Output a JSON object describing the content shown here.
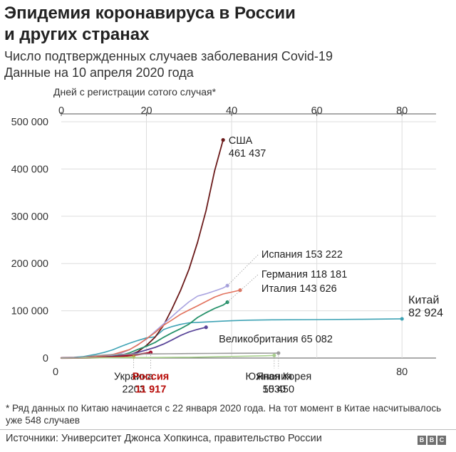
{
  "title_lines": [
    "Эпидемия коронавируса в России",
    "и других странах"
  ],
  "subtitle_lines": [
    "Число подтвержденных случаев заболевания Covid-19",
    "Данные на 10 апреля 2020 года"
  ],
  "footnote": "* Ряд данных по Китаю начинается с 22 января 2020 года. На тот момент в Китае насчитывалось уже 548 случаев",
  "source": "Источники: Университет Джонса Хопкинса, правительство России",
  "logo_letters": [
    "B",
    "B",
    "C"
  ],
  "chart_data": {
    "type": "line",
    "xlabel": "Дней с регистрации сотого случая*",
    "xlim": [
      0,
      88
    ],
    "ylim": [
      0,
      500000
    ],
    "x_ticks_top": [
      "0",
      "20",
      "40",
      "60",
      "80"
    ],
    "x_ticks_bottom": [
      "0",
      "80"
    ],
    "x_tick_values": [
      0,
      20,
      40,
      60,
      80
    ],
    "y_ticks": [
      {
        "value": 0,
        "label": "0"
      },
      {
        "value": 100000,
        "label": "100 000"
      },
      {
        "value": 200000,
        "label": "200 000"
      },
      {
        "value": 300000,
        "label": "300 000"
      },
      {
        "value": 400000,
        "label": "400 000"
      },
      {
        "value": 500000,
        "label": "500 000"
      }
    ],
    "grid": true,
    "series": [
      {
        "name": "Китай",
        "value_label": "82 924",
        "color": "#3fa3b5",
        "width": 1.6,
        "label_color": "#222222",
        "points": [
          [
            0,
            548
          ],
          [
            3,
            1300
          ],
          [
            5,
            2800
          ],
          [
            8,
            7700
          ],
          [
            10,
            11800
          ],
          [
            12,
            17200
          ],
          [
            14,
            24400
          ],
          [
            16,
            31200
          ],
          [
            18,
            37200
          ],
          [
            20,
            42600
          ],
          [
            22,
            44800
          ],
          [
            24,
            60300
          ],
          [
            26,
            66500
          ],
          [
            28,
            71300
          ],
          [
            30,
            74600
          ],
          [
            32,
            75500
          ],
          [
            36,
            77200
          ],
          [
            40,
            78900
          ],
          [
            44,
            80100
          ],
          [
            50,
            80900
          ],
          [
            60,
            81300
          ],
          [
            70,
            81900
          ],
          [
            80,
            82924
          ]
        ]
      },
      {
        "name": "США",
        "value_label": "461 437",
        "color": "#6b1a1a",
        "width": 1.8,
        "label_color": "#222222",
        "points": [
          [
            0,
            100
          ],
          [
            4,
            220
          ],
          [
            8,
            700
          ],
          [
            12,
            1700
          ],
          [
            14,
            3500
          ],
          [
            16,
            6400
          ],
          [
            18,
            13700
          ],
          [
            20,
            26700
          ],
          [
            22,
            43800
          ],
          [
            24,
            69200
          ],
          [
            26,
            104000
          ],
          [
            28,
            143000
          ],
          [
            30,
            188000
          ],
          [
            32,
            245000
          ],
          [
            34,
            312000
          ],
          [
            36,
            396000
          ],
          [
            38,
            461437
          ]
        ]
      },
      {
        "name": "Испания",
        "value_label": "153 222",
        "color": "#a9a3e0",
        "width": 1.6,
        "label_color": "#222222",
        "points": [
          [
            0,
            100
          ],
          [
            4,
            400
          ],
          [
            8,
            1700
          ],
          [
            12,
            5200
          ],
          [
            14,
            9900
          ],
          [
            16,
            17400
          ],
          [
            18,
            28600
          ],
          [
            20,
            39700
          ],
          [
            22,
            56200
          ],
          [
            24,
            72200
          ],
          [
            26,
            87900
          ],
          [
            28,
            104000
          ],
          [
            30,
            119000
          ],
          [
            32,
            131000
          ],
          [
            34,
            136000
          ],
          [
            36,
            141900
          ],
          [
            38,
            148200
          ],
          [
            39,
            153222
          ]
        ]
      },
      {
        "name": "Германия",
        "value_label": "118 181",
        "color": "#27926b",
        "width": 1.8,
        "label_color": "#222222",
        "points": [
          [
            0,
            130
          ],
          [
            4,
            260
          ],
          [
            8,
            1100
          ],
          [
            12,
            3700
          ],
          [
            14,
            6000
          ],
          [
            16,
            10900
          ],
          [
            18,
            18300
          ],
          [
            20,
            24900
          ],
          [
            22,
            32900
          ],
          [
            24,
            43900
          ],
          [
            26,
            53300
          ],
          [
            28,
            62000
          ],
          [
            30,
            71800
          ],
          [
            32,
            85800
          ],
          [
            34,
            96000
          ],
          [
            36,
            105000
          ],
          [
            38,
            112000
          ],
          [
            39,
            118181
          ]
        ]
      },
      {
        "name": "Италия",
        "value_label": "143 626",
        "color": "#e2725d",
        "width": 1.6,
        "label_color": "#222222",
        "points": [
          [
            0,
            150
          ],
          [
            4,
            650
          ],
          [
            8,
            2500
          ],
          [
            12,
            7400
          ],
          [
            14,
            12400
          ],
          [
            16,
            17700
          ],
          [
            18,
            27900
          ],
          [
            20,
            41000
          ],
          [
            22,
            53600
          ],
          [
            24,
            69200
          ],
          [
            26,
            80600
          ],
          [
            28,
            92500
          ],
          [
            30,
            101700
          ],
          [
            32,
            110600
          ],
          [
            34,
            119800
          ],
          [
            36,
            128900
          ],
          [
            38,
            135600
          ],
          [
            40,
            139400
          ],
          [
            42,
            143626
          ]
        ]
      },
      {
        "name": "Великобритания",
        "value_label": "65 082",
        "color": "#5a4699",
        "width": 1.8,
        "label_color": "#222222",
        "points": [
          [
            0,
            160
          ],
          [
            4,
            460
          ],
          [
            8,
            1300
          ],
          [
            12,
            3300
          ],
          [
            14,
            5000
          ],
          [
            16,
            8000
          ],
          [
            18,
            11800
          ],
          [
            20,
            17100
          ],
          [
            22,
            22500
          ],
          [
            24,
            29500
          ],
          [
            26,
            38200
          ],
          [
            28,
            47800
          ],
          [
            30,
            55200
          ],
          [
            32,
            60700
          ],
          [
            34,
            65082
          ]
        ]
      },
      {
        "name": "Россия",
        "value_label": "11 917",
        "color": "#a50f2d",
        "width": 2.4,
        "label_color": "#b80c09",
        "points": [
          [
            0,
            114
          ],
          [
            3,
            250
          ],
          [
            6,
            500
          ],
          [
            9,
            1000
          ],
          [
            12,
            2300
          ],
          [
            14,
            3500
          ],
          [
            16,
            5400
          ],
          [
            18,
            7500
          ],
          [
            20,
            10100
          ],
          [
            21,
            11917
          ]
        ]
      },
      {
        "name": "Украина",
        "value_label": "2203",
        "color": "#b6b23e",
        "width": 1.6,
        "label_color": "#222222",
        "points": [
          [
            0,
            113
          ],
          [
            4,
            310
          ],
          [
            8,
            550
          ],
          [
            12,
            1100
          ],
          [
            15,
            1700
          ],
          [
            17,
            2203
          ]
        ]
      },
      {
        "name": "Япония",
        "value_label": "5530",
        "color": "#a8d08d",
        "width": 1.6,
        "label_color": "#222222",
        "points": [
          [
            0,
            105
          ],
          [
            10,
            500
          ],
          [
            20,
            1100
          ],
          [
            30,
            1700
          ],
          [
            40,
            3300
          ],
          [
            45,
            4200
          ],
          [
            48,
            4800
          ],
          [
            50,
            5530
          ]
        ]
      },
      {
        "name": "Южная Корея",
        "value_label": "10 450",
        "color": "#9a9a9a",
        "width": 1.6,
        "label_color": "#222222",
        "points": [
          [
            0,
            104
          ],
          [
            4,
            830
          ],
          [
            8,
            5200
          ],
          [
            12,
            7500
          ],
          [
            16,
            8200
          ],
          [
            20,
            8600
          ],
          [
            25,
            9100
          ],
          [
            30,
            9500
          ],
          [
            35,
            9800
          ],
          [
            40,
            10100
          ],
          [
            45,
            10300
          ],
          [
            51,
            10450
          ]
        ]
      }
    ],
    "labels": [
      {
        "series": "США",
        "anchor": [
          38,
          461437
        ],
        "text_x": 39.3,
        "text_y": 453000,
        "lines": [
          "США",
          "461 437"
        ],
        "connector": false
      },
      {
        "series": "Испания",
        "anchor": [
          39,
          153222
        ],
        "text_x": 47,
        "text_y": 212000,
        "lines": [
          "Испания  153 222"
        ],
        "connector": true
      },
      {
        "series": "Германия",
        "anchor": [
          39,
          118181
        ],
        "text_x": 47,
        "text_y": 170000,
        "lines": [
          "Германия  118 181"
        ],
        "connector": true
      },
      {
        "series": "Италия",
        "anchor": [
          42,
          143626
        ],
        "text_x": 47,
        "text_y": 140000,
        "lines": [
          "Италия  143 626"
        ],
        "connector": false
      },
      {
        "series": "Китай",
        "anchor": [
          80,
          82924
        ],
        "text_x": 81.5,
        "text_y": 115000,
        "lines": [
          "Китай",
          "82 924"
        ],
        "connector": false,
        "size": 16
      },
      {
        "series": "Великобритания",
        "anchor": [
          34,
          65082
        ],
        "text_x": 37,
        "text_y": 33000,
        "lines": [
          "Великобритания  65 082"
        ],
        "connector": false
      },
      {
        "series": "Украина",
        "anchor": [
          17,
          2203
        ],
        "text_x": 8,
        "text_y": -46000,
        "lines": [
          "Украина",
          "2203"
        ],
        "connector": true
      },
      {
        "series": "Россия",
        "anchor": [
          21,
          11917
        ],
        "text_x": 24.5,
        "text_y": -46000,
        "lines": [
          "Россия",
          "11 917"
        ],
        "connector": true,
        "bold": true
      },
      {
        "series": "Япония",
        "anchor": [
          50,
          5530
        ],
        "text_x": 41.5,
        "text_y": -46000,
        "lines": [
          "Япония",
          "5530"
        ],
        "connector": true
      },
      {
        "series": "Южная Корея",
        "anchor": [
          51,
          10450
        ],
        "text_x": 52.5,
        "text_y": -46000,
        "lines": [
          "Южная Корея",
          "10 450"
        ],
        "connector": true
      }
    ]
  }
}
